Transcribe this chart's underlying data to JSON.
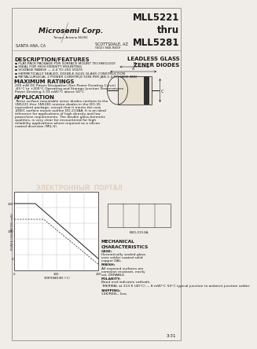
{
  "title_part": "MLL5221\nthru\nMLL5281",
  "title_sub": "LEADLESS GLASS\nZENER DIODES",
  "company": "Microsemi Corp.",
  "city_left": "SANTA ANA, CA",
  "city_right": "SCOTTSDALE, AZ",
  "addr_right": "Tempe, Arizona 85281\n(602) 948-9459",
  "desc_title": "DESCRIPTION/FEATURES",
  "desc_bullets": [
    "FLAT-PACK PACKAGE FOR SURFACE MOUNT TECHNOLOGY",
    "IDEAL FOR HIGH DENSITY MOUNTING",
    "VOLTAGE RANGE — 2.4 TO 200 VOLTS",
    "HERMETICALLY SEALED, DOUBLE-SLUG GLASS CONSTRUCTION",
    "METALLURGICAL 2 POWER CONSTRUCTION PER JAN 2.4 DC CASE AND"
  ],
  "max_title": "MAXIMUM RATINGS",
  "max_lines": [
    "200 mW DC Power Dissipation (See Power Derating Curve)",
    "-65°C to +200°C Operating and Storage Junction Temperatures",
    "Power Derating 3.33 mW/°C above 50°C"
  ],
  "app_title": "APPLICATION",
  "app_text": "These surface mountable zener diodes conform to the 1N5221 thru 1N5281 resistor diodes in the DO-35 equivalent package, except that it meets the new JEDEC surface mount outline DO-213AA. It is an ideal reference for applications of high density and low power/size requirements. The double glass-hermetic qualities, is very clear for encountered for high reliability applications where required as a silicon coated diversion (MIL-S).",
  "mech_title": "MECHANICAL\nCHARACTERISTICS",
  "mech_lines": [
    "CASE: Hermetically sealed glass over solder coated solid copper DAL.",
    "FINISH: All exposed surfaces are corrosion resistant, easily sol- DERABLE.",
    "POLARITY: Band end indicates cathode.",
    "THERMAL at 313 K (40°C) — 8 mW/°C 50°C typical junction to ambient junction solder.",
    "SHIPPING: 10K/REEL, 5ea."
  ],
  "pkg_label": "ESD-2153A",
  "page_num": "3-31",
  "bg_color": "#f0ede8",
  "text_color": "#1a1a1a",
  "watermark": "ЭЛЕКТРОННЫЙ  ПОРТАЛ"
}
